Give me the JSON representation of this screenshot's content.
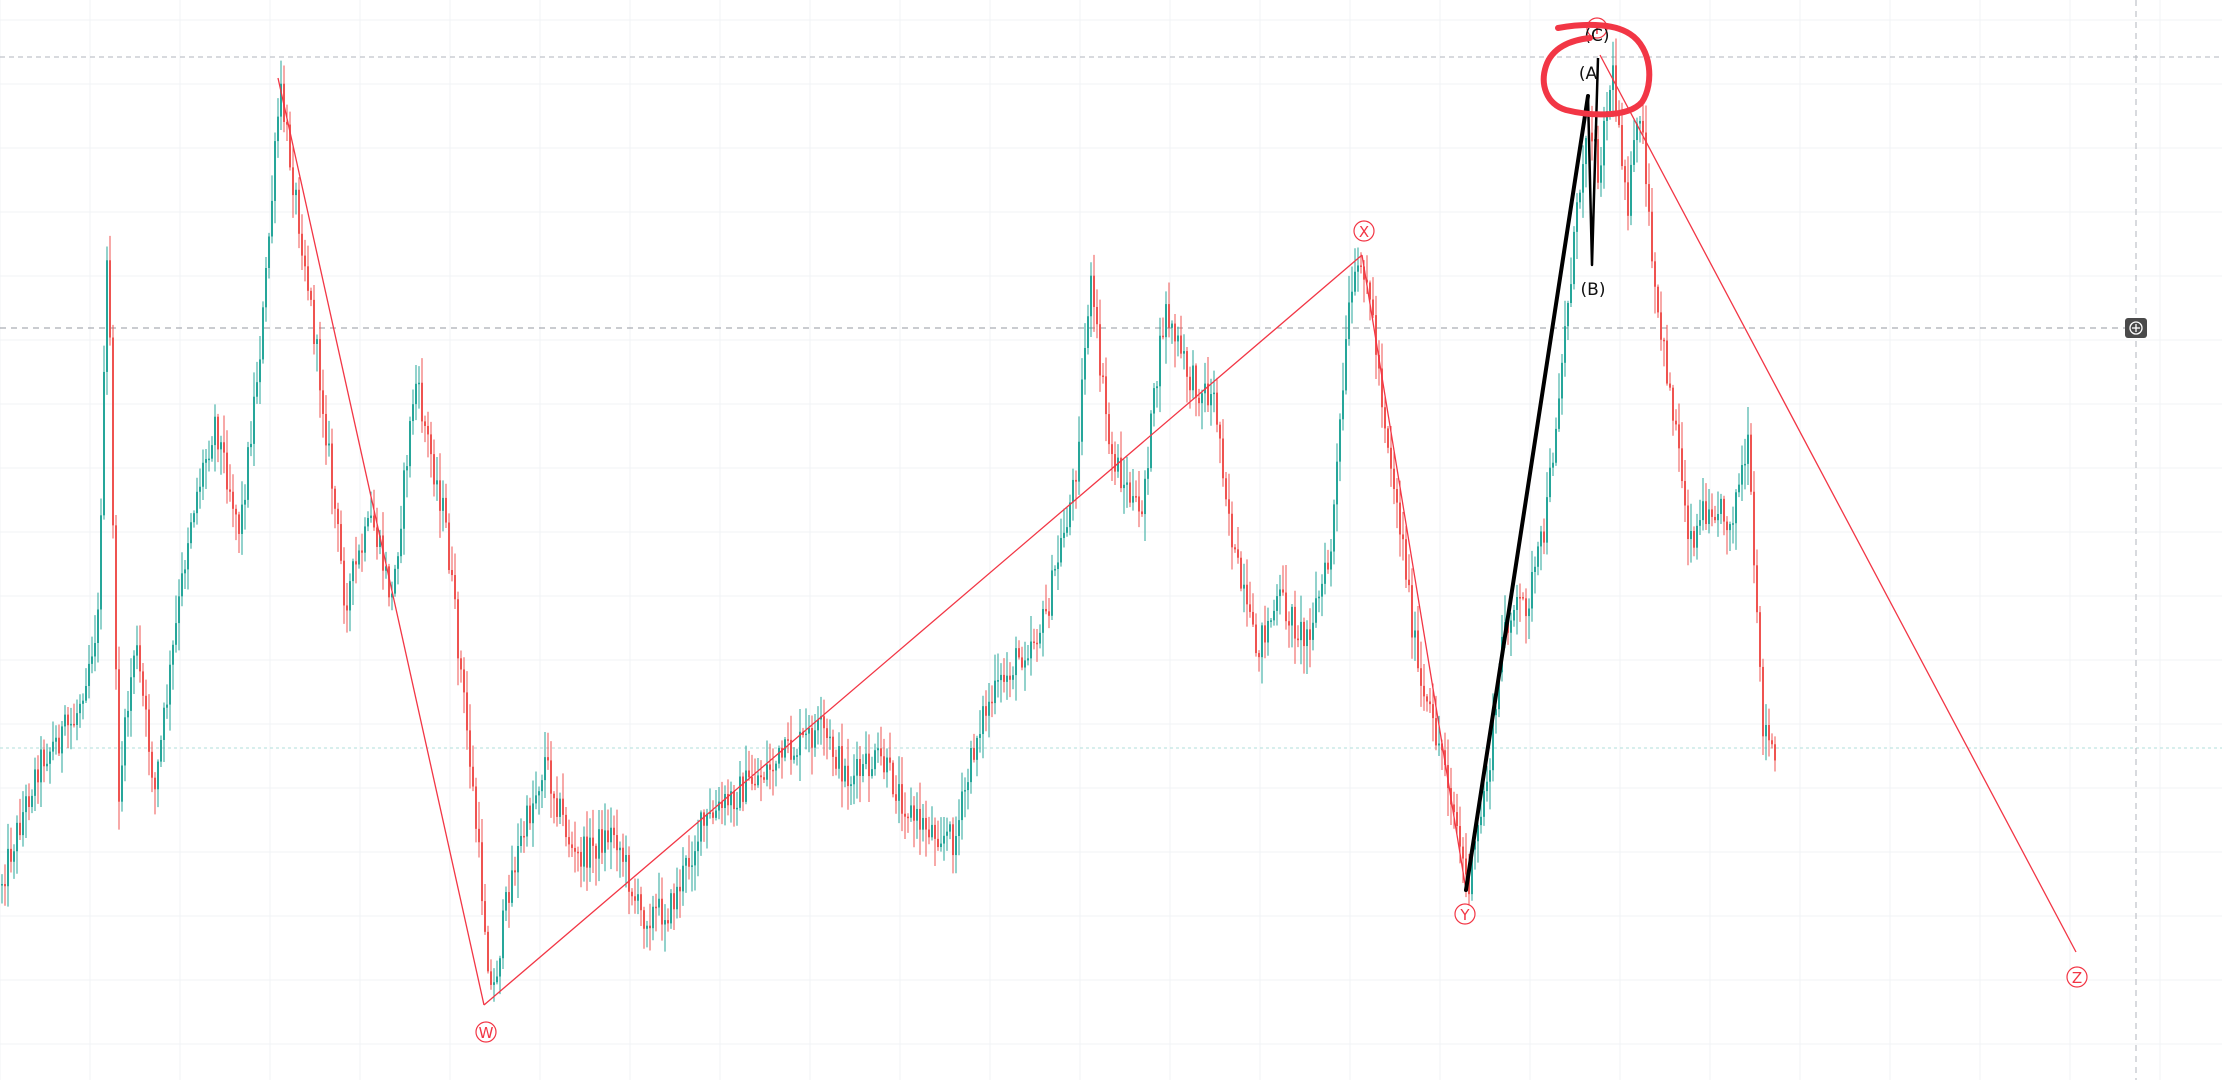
{
  "colors": {
    "background": "#ffffff",
    "grid": "#f1f3f6",
    "candle_up": "#26a69a",
    "candle_down": "#ef5350",
    "wave_line": "#f23645",
    "impulse_line": "#000000",
    "highlight_circle": "#f23645",
    "crosshair": "#9598a1",
    "level_line": "#b2b5be",
    "teal_level": "#b2dfdb",
    "plus_button_bg": "#4a4a4a",
    "plus_button_fg": "#ffffff"
  },
  "icons": {
    "crosshair_button": "plus-circle-icon"
  },
  "chart_data": {
    "type": "candlestick",
    "title": "",
    "xlabel": "",
    "ylabel": "",
    "grid": true,
    "ylim": [
      0,
      1080
    ],
    "y_direction": "price increases upward (screen-space units, no axis printed)",
    "price_path": [
      [
        0,
        885
      ],
      [
        40,
        760
      ],
      [
        75,
        720
      ],
      [
        98,
        620
      ],
      [
        108,
        230
      ],
      [
        118,
        800
      ],
      [
        135,
        640
      ],
      [
        155,
        790
      ],
      [
        190,
        520
      ],
      [
        215,
        420
      ],
      [
        240,
        530
      ],
      [
        262,
        330
      ],
      [
        280,
        90
      ],
      [
        305,
        260
      ],
      [
        325,
        420
      ],
      [
        345,
        600
      ],
      [
        372,
        520
      ],
      [
        392,
        600
      ],
      [
        415,
        380
      ],
      [
        445,
        520
      ],
      [
        470,
        760
      ],
      [
        492,
        1000
      ],
      [
        510,
        880
      ],
      [
        545,
        760
      ],
      [
        575,
        860
      ],
      [
        615,
        830
      ],
      [
        640,
        915
      ],
      [
        670,
        910
      ],
      [
        700,
        830
      ],
      [
        740,
        790
      ],
      [
        780,
        760
      ],
      [
        820,
        730
      ],
      [
        850,
        780
      ],
      [
        880,
        760
      ],
      [
        915,
        820
      ],
      [
        955,
        840
      ],
      [
        980,
        720
      ],
      [
        1010,
        670
      ],
      [
        1045,
        620
      ],
      [
        1075,
        480
      ],
      [
        1090,
        280
      ],
      [
        1110,
        450
      ],
      [
        1140,
        520
      ],
      [
        1165,
        310
      ],
      [
        1190,
        380
      ],
      [
        1215,
        400
      ],
      [
        1235,
        560
      ],
      [
        1255,
        650
      ],
      [
        1280,
        600
      ],
      [
        1305,
        640
      ],
      [
        1330,
        560
      ],
      [
        1350,
        300
      ],
      [
        1365,
        260
      ],
      [
        1385,
        420
      ],
      [
        1405,
        560
      ],
      [
        1420,
        690
      ],
      [
        1445,
        760
      ],
      [
        1468,
        890
      ],
      [
        1490,
        760
      ],
      [
        1505,
        620
      ],
      [
        1528,
        600
      ],
      [
        1545,
        530
      ],
      [
        1568,
        300
      ],
      [
        1588,
        110
      ],
      [
        1598,
        170
      ],
      [
        1612,
        70
      ],
      [
        1628,
        200
      ],
      [
        1640,
        110
      ],
      [
        1655,
        300
      ],
      [
        1675,
        420
      ],
      [
        1690,
        540
      ],
      [
        1710,
        500
      ],
      [
        1730,
        520
      ],
      [
        1748,
        450
      ],
      [
        1762,
        720
      ],
      [
        1775,
        760
      ]
    ],
    "wave_points": [
      {
        "label": "W",
        "x": 484,
        "y": 1005
      },
      {
        "label": "X",
        "x": 1362,
        "y": 255
      },
      {
        "label": "Y",
        "x": 1466,
        "y": 890
      },
      {
        "label": "Y",
        "x": 1596,
        "y": 53
      },
      {
        "label": "Z",
        "x": 2076,
        "y": 952
      }
    ],
    "wave_start": {
      "x": 278,
      "y": 78
    },
    "abc_labels": [
      "(A",
      "(B)",
      "(C)"
    ]
  }
}
